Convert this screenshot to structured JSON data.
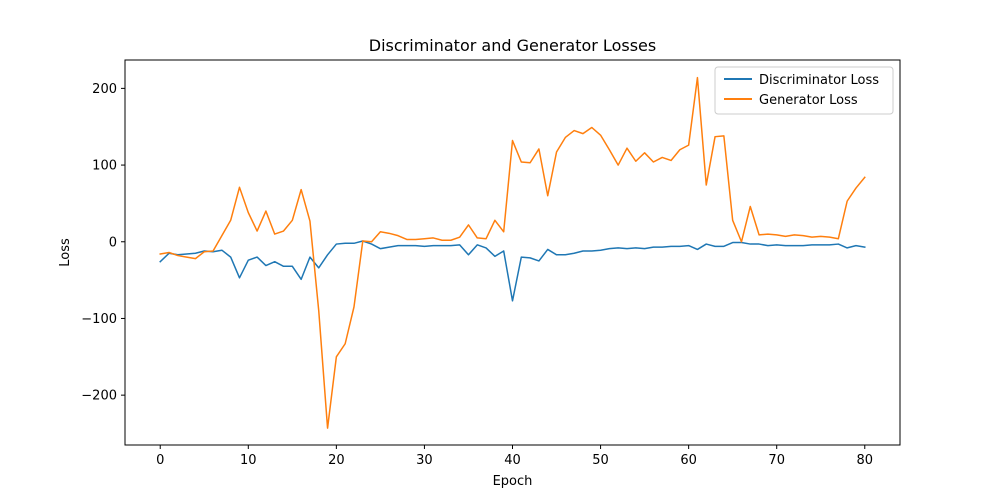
{
  "chart_data": {
    "type": "line",
    "title": "Discriminator and Generator Losses",
    "xlabel": "Epoch",
    "ylabel": "Loss",
    "xlim": [
      -4,
      84
    ],
    "ylim": [
      -265,
      237
    ],
    "xticks": [
      0,
      10,
      20,
      30,
      40,
      50,
      60,
      70,
      80
    ],
    "yticks": [
      -200,
      -100,
      0,
      100,
      200
    ],
    "ytick_labels": [
      "−200",
      "−100",
      "0",
      "100",
      "200"
    ],
    "grid": false,
    "legend_position": "top-right",
    "x": [
      0,
      1,
      2,
      3,
      4,
      5,
      6,
      7,
      8,
      9,
      10,
      11,
      12,
      13,
      14,
      15,
      16,
      17,
      18,
      19,
      20,
      21,
      22,
      23,
      24,
      25,
      26,
      27,
      28,
      29,
      30,
      31,
      32,
      33,
      34,
      35,
      36,
      37,
      38,
      39,
      40,
      41,
      42,
      43,
      44,
      45,
      46,
      47,
      48,
      49,
      50,
      51,
      52,
      53,
      54,
      55,
      56,
      57,
      58,
      59,
      60,
      61,
      62,
      63,
      64,
      65,
      66,
      67,
      68,
      69,
      70,
      71,
      72,
      73,
      74,
      75,
      76,
      77,
      78,
      79,
      80
    ],
    "series": [
      {
        "name": "Discriminator Loss",
        "color": "#1f77b4",
        "values": [
          -26,
          -15,
          -17,
          -16,
          -15,
          -12,
          -13,
          -11,
          -20,
          -47,
          -24,
          -20,
          -31,
          -26,
          -32,
          -32,
          -49,
          -20,
          -34,
          -17,
          -3,
          -2,
          -2,
          1,
          -3,
          -9,
          -7,
          -5,
          -5,
          -5,
          -6,
          -5,
          -5,
          -5,
          -4,
          -17,
          -4,
          -8,
          -19,
          -12,
          -77,
          -20,
          -21,
          -25,
          -10,
          -17,
          -17,
          -15,
          -12,
          -12,
          -11,
          -9,
          -8,
          -9,
          -8,
          -9,
          -7,
          -7,
          -6,
          -6,
          -5,
          -10,
          -3,
          -6,
          -6,
          -1,
          -1,
          -3,
          -3,
          -5,
          -4,
          -5,
          -5,
          -5,
          -4,
          -4,
          -4,
          -3,
          -8,
          -5,
          -7
        ]
      },
      {
        "name": "Generator Loss",
        "color": "#ff7f0e",
        "values": [
          -16,
          -14,
          -18,
          -20,
          -22,
          -13,
          -12,
          8,
          28,
          71,
          38,
          14,
          40,
          10,
          14,
          28,
          68,
          27,
          -90,
          -243,
          -150,
          -133,
          -85,
          1,
          0,
          13,
          11,
          8,
          3,
          3,
          4,
          5,
          2,
          2,
          6,
          22,
          5,
          4,
          28,
          13,
          132,
          104,
          103,
          121,
          60,
          117,
          136,
          145,
          141,
          149,
          139,
          120,
          100,
          122,
          105,
          116,
          104,
          110,
          106,
          120,
          126,
          214,
          74,
          137,
          138,
          28,
          0,
          46,
          9,
          10,
          9,
          7,
          9,
          8,
          6,
          7,
          6,
          4,
          53,
          70,
          84
        ]
      }
    ]
  }
}
